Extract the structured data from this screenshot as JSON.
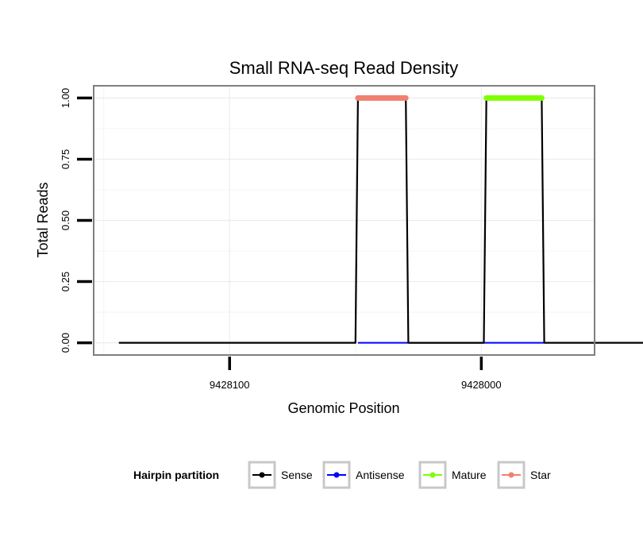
{
  "chart_data": {
    "type": "line",
    "title": "Small RNA-seq Read Density",
    "xlabel": "Genomic Position",
    "ylabel": "Total Reads",
    "x_reversed": true,
    "xlim": [
      9428154,
      9427955
    ],
    "ylim": [
      -0.05,
      1.05
    ],
    "x_ticks": [
      9428100,
      9428000
    ],
    "x_tick_labels": [
      "9428100",
      "9428000"
    ],
    "y_ticks": [
      0,
      0.25,
      0.5,
      0.75,
      1.0
    ],
    "y_tick_labels": [
      "0.00",
      "0.25",
      "0.50",
      "0.75",
      "1.00"
    ],
    "grid": true,
    "legend": {
      "title": "Hairpin partition",
      "position": "bottom",
      "entries": [
        {
          "name": "Sense",
          "color": "#000000"
        },
        {
          "name": "Antisense",
          "color": "#0000ff"
        },
        {
          "name": "Mature",
          "color": "#7fff00"
        },
        {
          "name": "Star",
          "color": "#f08070"
        }
      ]
    },
    "series": [
      {
        "name": "Sense",
        "color": "#000000",
        "x": [
          9428144,
          9428050,
          9428049,
          9428030,
          9428029,
          9427999,
          9427998,
          9427976,
          9427975,
          9427896
        ],
        "y": [
          0,
          0,
          1,
          1,
          0,
          0,
          1,
          1,
          0,
          0
        ]
      },
      {
        "name": "Antisense",
        "color": "#0000ff",
        "x": [
          9428049,
          9428029,
          9427998,
          9427975
        ],
        "y": [
          0,
          0,
          0,
          0
        ]
      },
      {
        "name": "Mature",
        "color": "#7fff00",
        "x": [
          9427998,
          9427976
        ],
        "y": [
          1,
          1
        ]
      },
      {
        "name": "Star",
        "color": "#f08070",
        "x": [
          9428049,
          9428030
        ],
        "y": [
          1,
          1
        ]
      }
    ]
  }
}
